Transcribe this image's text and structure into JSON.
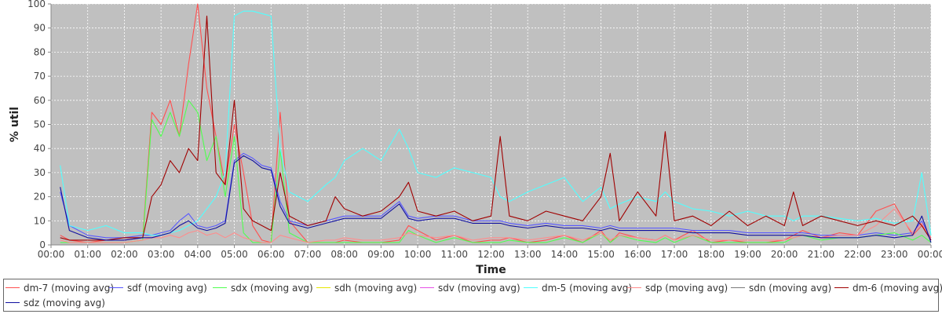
{
  "chart_data": {
    "type": "line",
    "title": "",
    "xlabel": "Time",
    "ylabel": "% util",
    "ylim": [
      0,
      100
    ],
    "yticks": [
      0,
      10,
      20,
      30,
      40,
      50,
      60,
      70,
      80,
      90,
      100
    ],
    "xlim": [
      0,
      24
    ],
    "xticks": [
      "00:00",
      "01:00",
      "02:00",
      "03:00",
      "04:00",
      "05:00",
      "06:00",
      "07:00",
      "08:00",
      "09:00",
      "10:00",
      "11:00",
      "12:00",
      "13:00",
      "14:00",
      "15:00",
      "16:00",
      "17:00",
      "18:00",
      "19:00",
      "20:00",
      "21:00",
      "22:00",
      "23:00",
      "00:00"
    ],
    "x": [
      "00:15",
      "00:30",
      "01:00",
      "01:30",
      "02:00",
      "02:30",
      "02:45",
      "03:00",
      "03:15",
      "03:30",
      "03:45",
      "04:00",
      "04:15",
      "04:30",
      "04:45",
      "05:00",
      "05:15",
      "05:30",
      "05:45",
      "06:00",
      "06:15",
      "06:30",
      "07:00",
      "07:30",
      "07:45",
      "08:00",
      "08:30",
      "09:00",
      "09:30",
      "09:45",
      "10:00",
      "10:30",
      "11:00",
      "11:30",
      "12:00",
      "12:15",
      "12:30",
      "13:00",
      "13:30",
      "14:00",
      "14:30",
      "15:00",
      "15:15",
      "15:30",
      "16:00",
      "16:30",
      "16:45",
      "17:00",
      "17:30",
      "18:00",
      "18:30",
      "19:00",
      "19:30",
      "20:00",
      "20:15",
      "20:30",
      "21:00",
      "21:30",
      "22:00",
      "22:30",
      "23:00",
      "23:30",
      "23:45",
      "24:00"
    ],
    "grid": true,
    "legend_position": "bottom",
    "plot_background": "#c0c0c0",
    "series": [
      {
        "name": "dm-7 (moving avg)",
        "color": "#ff5050",
        "values": [
          4,
          2,
          1,
          2,
          2,
          3,
          55,
          50,
          60,
          45,
          75,
          100,
          65,
          45,
          25,
          50,
          30,
          8,
          2,
          1,
          55,
          10,
          1,
          1,
          1,
          2,
          1,
          1,
          2,
          8,
          6,
          2,
          4,
          1,
          2,
          2,
          3,
          1,
          2,
          4,
          1,
          6,
          1,
          5,
          3,
          2,
          4,
          2,
          6,
          1,
          2,
          1,
          1,
          2,
          4,
          6,
          3,
          5,
          4,
          14,
          17,
          4,
          8,
          3
        ]
      },
      {
        "name": "sdf (moving avg)",
        "color": "#5858ff",
        "values": [
          22,
          8,
          4,
          3,
          3,
          4,
          4,
          5,
          6,
          10,
          13,
          8,
          7,
          8,
          10,
          35,
          38,
          36,
          33,
          32,
          18,
          10,
          8,
          10,
          11,
          12,
          12,
          12,
          18,
          12,
          11,
          12,
          12,
          10,
          10,
          10,
          9,
          8,
          9,
          8,
          8,
          7,
          8,
          7,
          7,
          7,
          7,
          7,
          6,
          6,
          6,
          5,
          5,
          5,
          5,
          5,
          4,
          4,
          4,
          5,
          4,
          5,
          10,
          2
        ]
      },
      {
        "name": "sdx (moving avg)",
        "color": "#50ff50",
        "values": [
          1,
          1,
          1,
          1,
          1,
          2,
          52,
          45,
          55,
          45,
          60,
          55,
          35,
          45,
          20,
          45,
          5,
          1,
          1,
          1,
          40,
          5,
          1,
          1,
          1,
          1,
          1,
          1,
          1,
          6,
          4,
          1,
          3,
          1,
          1,
          1,
          2,
          1,
          1,
          3,
          1,
          5,
          1,
          4,
          2,
          1,
          3,
          1,
          4,
          1,
          1,
          1,
          1,
          1,
          3,
          4,
          2,
          3,
          3,
          4,
          5,
          2,
          4,
          1
        ]
      },
      {
        "name": "sdh (moving avg)",
        "color": "#e6e600",
        "values": [
          0,
          0,
          0,
          0,
          0,
          0,
          0,
          0,
          0,
          0,
          0,
          0,
          0,
          0,
          0,
          0,
          0,
          0,
          0,
          0,
          0,
          0,
          0,
          0,
          0,
          0,
          0,
          0,
          0,
          0,
          0,
          0,
          0,
          0,
          0,
          0,
          0,
          0,
          0,
          0,
          0,
          0,
          0,
          0,
          0,
          0,
          0,
          0,
          0,
          0,
          0,
          0,
          0,
          0,
          0,
          0,
          0,
          0,
          0,
          0,
          0,
          0,
          0,
          0
        ]
      },
      {
        "name": "sdv (moving avg)",
        "color": "#e650e6",
        "values": [
          0,
          0,
          0,
          0,
          0,
          0,
          0,
          0,
          0,
          0,
          0,
          0,
          0,
          0,
          0,
          0,
          0,
          0,
          0,
          0,
          0,
          0,
          0,
          0,
          0,
          0,
          0,
          0,
          0,
          0,
          0,
          0,
          0,
          0,
          0,
          0,
          0,
          0,
          0,
          0,
          0,
          0,
          0,
          0,
          0,
          0,
          0,
          0,
          0,
          0,
          0,
          0,
          0,
          0,
          0,
          0,
          0,
          0,
          0,
          0,
          0,
          0,
          0,
          0
        ]
      },
      {
        "name": "dm-5 (moving avg)",
        "color": "#50ffff",
        "values": [
          33,
          8,
          6,
          8,
          5,
          5,
          4,
          4,
          5,
          6,
          8,
          10,
          15,
          20,
          30,
          95,
          97,
          97,
          96,
          95,
          40,
          22,
          18,
          25,
          28,
          35,
          40,
          35,
          48,
          40,
          30,
          28,
          32,
          30,
          28,
          20,
          18,
          22,
          25,
          28,
          18,
          24,
          15,
          17,
          20,
          18,
          22,
          18,
          15,
          14,
          12,
          14,
          12,
          12,
          10,
          12,
          12,
          11,
          10,
          11,
          9,
          10,
          30,
          4
        ]
      },
      {
        "name": "sdp (moving avg)",
        "color": "#ff8c8c",
        "values": [
          2,
          1,
          1,
          1,
          1,
          2,
          3,
          3,
          4,
          3,
          5,
          6,
          4,
          5,
          3,
          5,
          3,
          2,
          1,
          1,
          4,
          3,
          1,
          2,
          2,
          3,
          2,
          2,
          3,
          5,
          4,
          3,
          4,
          2,
          3,
          3,
          3,
          2,
          3,
          4,
          2,
          5,
          2,
          4,
          3,
          2,
          4,
          2,
          4,
          2,
          2,
          2,
          2,
          2,
          3,
          4,
          3,
          4,
          4,
          8,
          15,
          5,
          9,
          2
        ]
      },
      {
        "name": "sdn (moving avg)",
        "color": "#7a7a7a",
        "values": [
          0,
          0,
          0,
          0,
          0,
          0,
          0,
          0,
          0,
          0,
          0,
          0,
          0,
          0,
          0,
          0,
          0,
          0,
          0,
          0,
          0,
          0,
          0,
          0,
          0,
          0,
          0,
          0,
          0,
          0,
          0,
          0,
          0,
          0,
          0,
          0,
          0,
          0,
          0,
          0,
          0,
          0,
          0,
          0,
          0,
          0,
          0,
          0,
          0,
          0,
          0,
          0,
          0,
          0,
          0,
          0,
          0,
          0,
          0,
          0,
          0,
          0,
          0,
          0
        ]
      },
      {
        "name": "dm-6 (moving avg)",
        "color": "#a00000",
        "values": [
          3,
          2,
          2,
          2,
          3,
          3,
          20,
          25,
          35,
          30,
          40,
          35,
          95,
          30,
          25,
          60,
          15,
          10,
          8,
          6,
          30,
          12,
          8,
          10,
          20,
          15,
          12,
          14,
          20,
          26,
          14,
          12,
          14,
          10,
          12,
          45,
          12,
          10,
          14,
          12,
          10,
          20,
          38,
          10,
          22,
          12,
          47,
          10,
          12,
          8,
          14,
          8,
          12,
          8,
          22,
          8,
          12,
          10,
          8,
          10,
          8,
          12,
          8,
          2
        ]
      },
      {
        "name": "sdz (moving avg)",
        "color": "#1010a0",
        "values": [
          24,
          6,
          3,
          2,
          2,
          3,
          3,
          4,
          5,
          8,
          10,
          7,
          6,
          7,
          9,
          34,
          37,
          35,
          32,
          31,
          16,
          9,
          7,
          9,
          10,
          11,
          11,
          11,
          17,
          11,
          10,
          11,
          11,
          9,
          9,
          9,
          8,
          7,
          8,
          7,
          7,
          6,
          7,
          6,
          6,
          6,
          6,
          6,
          5,
          5,
          5,
          4,
          4,
          4,
          4,
          4,
          3,
          3,
          3,
          4,
          3,
          4,
          12,
          1
        ]
      }
    ]
  }
}
